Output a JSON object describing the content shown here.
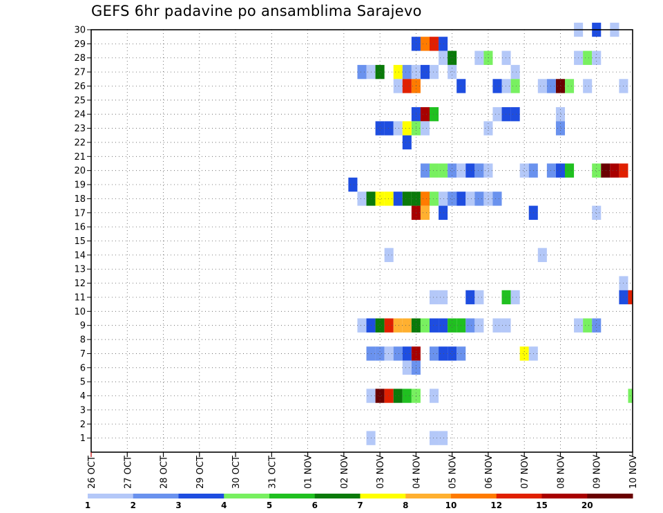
{
  "chart_data": {
    "type": "heatmap",
    "title": "GEFS 6hr padavine po ansamblima Sarajevo",
    "xlabel": "",
    "ylabel": "",
    "x_tick_labels": [
      "26 OCT",
      "27 OCT",
      "28 OCT",
      "29 OCT",
      "30 OCT",
      "31 OCT",
      "01 NOV",
      "02 NOV",
      "03 NOV",
      "04 NOV",
      "05 NOV",
      "06 NOV",
      "07 NOV",
      "08 NOV",
      "09 NOV",
      "10 NOV"
    ],
    "x_start": "26 OCT",
    "steps_per_day": 4,
    "step_hours": 6,
    "x_range_steps": [
      0,
      60
    ],
    "y_tick_labels": [
      "1",
      "2",
      "3",
      "4",
      "5",
      "6",
      "7",
      "8",
      "9",
      "10",
      "11",
      "12",
      "13",
      "14",
      "15",
      "16",
      "17",
      "18",
      "19",
      "20",
      "21",
      "22",
      "23",
      "24",
      "25",
      "26",
      "27",
      "28",
      "29",
      "30"
    ],
    "y_range": [
      0,
      30
    ],
    "grid": true,
    "legend_placement": "bottom",
    "legend_labels": [
      "1",
      "2",
      "3",
      "4",
      "5",
      "6",
      "7",
      "8",
      "10",
      "12",
      "15",
      "20"
    ],
    "colorscale": [
      "#b4c8f8",
      "#6a92ee",
      "#1e4de0",
      "#78f060",
      "#20c020",
      "#0a7a0a",
      "#ffff00",
      "#ffb030",
      "#ff7b00",
      "#e02000",
      "#a80000",
      "#6a0000"
    ],
    "cells": [
      {
        "m": 30,
        "t": 54,
        "c": 0
      },
      {
        "m": 30,
        "t": 56,
        "c": 2
      },
      {
        "m": 30,
        "t": 58,
        "c": 0
      },
      {
        "m": 29,
        "t": 36,
        "c": 2
      },
      {
        "m": 29,
        "t": 37,
        "c": 8
      },
      {
        "m": 29,
        "t": 38,
        "c": 9
      },
      {
        "m": 29,
        "t": 39,
        "c": 2
      },
      {
        "m": 28,
        "t": 39,
        "c": 0
      },
      {
        "m": 28,
        "t": 40,
        "c": 5
      },
      {
        "m": 28,
        "t": 43,
        "c": 0
      },
      {
        "m": 28,
        "t": 44,
        "c": 3
      },
      {
        "m": 28,
        "t": 46,
        "c": 0
      },
      {
        "m": 28,
        "t": 54,
        "c": 0
      },
      {
        "m": 28,
        "t": 55,
        "c": 3
      },
      {
        "m": 28,
        "t": 56,
        "c": 0
      },
      {
        "m": 27,
        "t": 30,
        "c": 1
      },
      {
        "m": 27,
        "t": 31,
        "c": 0
      },
      {
        "m": 27,
        "t": 32,
        "c": 5
      },
      {
        "m": 27,
        "t": 34,
        "c": 6
      },
      {
        "m": 27,
        "t": 35,
        "c": 1
      },
      {
        "m": 27,
        "t": 36,
        "c": 0
      },
      {
        "m": 27,
        "t": 37,
        "c": 2
      },
      {
        "m": 27,
        "t": 38,
        "c": 0
      },
      {
        "m": 27,
        "t": 40,
        "c": 0
      },
      {
        "m": 27,
        "t": 47,
        "c": 0
      },
      {
        "m": 26,
        "t": 34,
        "c": 0
      },
      {
        "m": 26,
        "t": 35,
        "c": 9
      },
      {
        "m": 26,
        "t": 36,
        "c": 8
      },
      {
        "m": 26,
        "t": 41,
        "c": 2
      },
      {
        "m": 26,
        "t": 45,
        "c": 2
      },
      {
        "m": 26,
        "t": 46,
        "c": 0
      },
      {
        "m": 26,
        "t": 47,
        "c": 3
      },
      {
        "m": 26,
        "t": 50,
        "c": 0
      },
      {
        "m": 26,
        "t": 51,
        "c": 1
      },
      {
        "m": 26,
        "t": 52,
        "c": 11
      },
      {
        "m": 26,
        "t": 53,
        "c": 3
      },
      {
        "m": 26,
        "t": 55,
        "c": 0
      },
      {
        "m": 26,
        "t": 59,
        "c": 0
      },
      {
        "m": 24,
        "t": 36,
        "c": 2
      },
      {
        "m": 24,
        "t": 37,
        "c": 10
      },
      {
        "m": 24,
        "t": 38,
        "c": 4
      },
      {
        "m": 24,
        "t": 45,
        "c": 0
      },
      {
        "m": 24,
        "t": 46,
        "c": 2
      },
      {
        "m": 24,
        "t": 47,
        "c": 2
      },
      {
        "m": 24,
        "t": 52,
        "c": 0
      },
      {
        "m": 23,
        "t": 32,
        "c": 2
      },
      {
        "m": 23,
        "t": 33,
        "c": 2
      },
      {
        "m": 23,
        "t": 34,
        "c": 0
      },
      {
        "m": 23,
        "t": 35,
        "c": 6
      },
      {
        "m": 23,
        "t": 36,
        "c": 3
      },
      {
        "m": 23,
        "t": 37,
        "c": 0
      },
      {
        "m": 23,
        "t": 44,
        "c": 0
      },
      {
        "m": 23,
        "t": 52,
        "c": 1
      },
      {
        "m": 22,
        "t": 35,
        "c": 2
      },
      {
        "m": 20,
        "t": 37,
        "c": 1
      },
      {
        "m": 20,
        "t": 38,
        "c": 3
      },
      {
        "m": 20,
        "t": 39,
        "c": 3
      },
      {
        "m": 20,
        "t": 40,
        "c": 1
      },
      {
        "m": 20,
        "t": 41,
        "c": 0
      },
      {
        "m": 20,
        "t": 42,
        "c": 2
      },
      {
        "m": 20,
        "t": 43,
        "c": 1
      },
      {
        "m": 20,
        "t": 44,
        "c": 0
      },
      {
        "m": 20,
        "t": 48,
        "c": 0
      },
      {
        "m": 20,
        "t": 49,
        "c": 1
      },
      {
        "m": 20,
        "t": 51,
        "c": 1
      },
      {
        "m": 20,
        "t": 52,
        "c": 2
      },
      {
        "m": 20,
        "t": 53,
        "c": 4
      },
      {
        "m": 20,
        "t": 56,
        "c": 3
      },
      {
        "m": 20,
        "t": 57,
        "c": 11
      },
      {
        "m": 20,
        "t": 58,
        "c": 10
      },
      {
        "m": 20,
        "t": 59,
        "c": 9
      },
      {
        "m": 19,
        "t": 29,
        "c": 2
      },
      {
        "m": 18,
        "t": 30,
        "c": 0
      },
      {
        "m": 18,
        "t": 31,
        "c": 5
      },
      {
        "m": 18,
        "t": 32,
        "c": 6
      },
      {
        "m": 18,
        "t": 33,
        "c": 6
      },
      {
        "m": 18,
        "t": 34,
        "c": 2
      },
      {
        "m": 18,
        "t": 35,
        "c": 5
      },
      {
        "m": 18,
        "t": 36,
        "c": 5
      },
      {
        "m": 18,
        "t": 37,
        "c": 8
      },
      {
        "m": 18,
        "t": 38,
        "c": 3
      },
      {
        "m": 18,
        "t": 39,
        "c": 0
      },
      {
        "m": 18,
        "t": 40,
        "c": 1
      },
      {
        "m": 18,
        "t": 41,
        "c": 2
      },
      {
        "m": 18,
        "t": 42,
        "c": 0
      },
      {
        "m": 18,
        "t": 43,
        "c": 1
      },
      {
        "m": 18,
        "t": 44,
        "c": 0
      },
      {
        "m": 18,
        "t": 45,
        "c": 1
      },
      {
        "m": 17,
        "t": 36,
        "c": 10
      },
      {
        "m": 17,
        "t": 37,
        "c": 7
      },
      {
        "m": 17,
        "t": 39,
        "c": 2
      },
      {
        "m": 17,
        "t": 49,
        "c": 2
      },
      {
        "m": 17,
        "t": 56,
        "c": 0
      },
      {
        "m": 14,
        "t": 33,
        "c": 0
      },
      {
        "m": 14,
        "t": 50,
        "c": 0
      },
      {
        "m": 12,
        "t": 59,
        "c": 0
      },
      {
        "m": 11,
        "t": 38,
        "c": 0
      },
      {
        "m": 11,
        "t": 39,
        "c": 0
      },
      {
        "m": 11,
        "t": 42,
        "c": 2
      },
      {
        "m": 11,
        "t": 43,
        "c": 0
      },
      {
        "m": 11,
        "t": 46,
        "c": 4
      },
      {
        "m": 11,
        "t": 47,
        "c": 0
      },
      {
        "m": 11,
        "t": 59,
        "c": 2
      },
      {
        "m": 11,
        "t": 60,
        "c": 9
      },
      {
        "m": 9,
        "t": 30,
        "c": 0
      },
      {
        "m": 9,
        "t": 31,
        "c": 2
      },
      {
        "m": 9,
        "t": 32,
        "c": 5
      },
      {
        "m": 9,
        "t": 33,
        "c": 9
      },
      {
        "m": 9,
        "t": 34,
        "c": 7
      },
      {
        "m": 9,
        "t": 35,
        "c": 7
      },
      {
        "m": 9,
        "t": 36,
        "c": 5
      },
      {
        "m": 9,
        "t": 37,
        "c": 3
      },
      {
        "m": 9,
        "t": 38,
        "c": 2
      },
      {
        "m": 9,
        "t": 39,
        "c": 2
      },
      {
        "m": 9,
        "t": 40,
        "c": 4
      },
      {
        "m": 9,
        "t": 41,
        "c": 4
      },
      {
        "m": 9,
        "t": 42,
        "c": 1
      },
      {
        "m": 9,
        "t": 43,
        "c": 0
      },
      {
        "m": 9,
        "t": 45,
        "c": 0
      },
      {
        "m": 9,
        "t": 46,
        "c": 0
      },
      {
        "m": 9,
        "t": 54,
        "c": 0
      },
      {
        "m": 9,
        "t": 55,
        "c": 3
      },
      {
        "m": 9,
        "t": 56,
        "c": 1
      },
      {
        "m": 7,
        "t": 31,
        "c": 1
      },
      {
        "m": 7,
        "t": 32,
        "c": 1
      },
      {
        "m": 7,
        "t": 33,
        "c": 0
      },
      {
        "m": 7,
        "t": 34,
        "c": 1
      },
      {
        "m": 7,
        "t": 35,
        "c": 2
      },
      {
        "m": 7,
        "t": 36,
        "c": 10
      },
      {
        "m": 7,
        "t": 38,
        "c": 1
      },
      {
        "m": 7,
        "t": 39,
        "c": 2
      },
      {
        "m": 7,
        "t": 40,
        "c": 2
      },
      {
        "m": 7,
        "t": 41,
        "c": 1
      },
      {
        "m": 7,
        "t": 48,
        "c": 6
      },
      {
        "m": 7,
        "t": 49,
        "c": 0
      },
      {
        "m": 6,
        "t": 35,
        "c": 0
      },
      {
        "m": 6,
        "t": 36,
        "c": 1
      },
      {
        "m": 4,
        "t": 31,
        "c": 0
      },
      {
        "m": 4,
        "t": 32,
        "c": 11
      },
      {
        "m": 4,
        "t": 33,
        "c": 9
      },
      {
        "m": 4,
        "t": 34,
        "c": 5
      },
      {
        "m": 4,
        "t": 35,
        "c": 4
      },
      {
        "m": 4,
        "t": 36,
        "c": 3
      },
      {
        "m": 4,
        "t": 38,
        "c": 0
      },
      {
        "m": 4,
        "t": 60,
        "c": 3
      },
      {
        "m": 1,
        "t": 31,
        "c": 0
      },
      {
        "m": 1,
        "t": 38,
        "c": 0
      },
      {
        "m": 1,
        "t": 39,
        "c": 0
      }
    ]
  }
}
